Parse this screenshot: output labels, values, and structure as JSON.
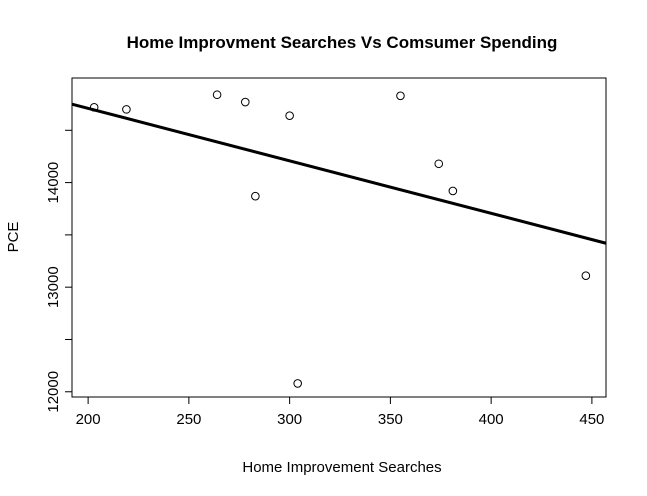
{
  "chart_data": {
    "type": "scatter",
    "title": "Home Improvment Searches Vs Comsumer Spending",
    "xlabel": "Home Improvement Searches",
    "ylabel": "PCE",
    "xlim": [
      192,
      457
    ],
    "ylim": [
      11950,
      15000
    ],
    "x_ticks": [
      200,
      250,
      300,
      350,
      400,
      450
    ],
    "y_ticks": [
      12000,
      12500,
      13000,
      13500,
      14000,
      14500
    ],
    "y_tick_labels": [
      "12000",
      "",
      "13000",
      "",
      "14000",
      ""
    ],
    "points": [
      {
        "x": 203,
        "y": 14720
      },
      {
        "x": 219,
        "y": 14700
      },
      {
        "x": 264,
        "y": 14840
      },
      {
        "x": 278,
        "y": 14770
      },
      {
        "x": 283,
        "y": 13870
      },
      {
        "x": 300,
        "y": 14640
      },
      {
        "x": 304,
        "y": 12080
      },
      {
        "x": 355,
        "y": 14830
      },
      {
        "x": 374,
        "y": 14180
      },
      {
        "x": 381,
        "y": 13920
      },
      {
        "x": 447,
        "y": 13110
      }
    ],
    "regression_line": {
      "x": [
        192,
        457
      ],
      "y": [
        14750,
        13420
      ]
    },
    "grid": false,
    "legend": "none"
  }
}
